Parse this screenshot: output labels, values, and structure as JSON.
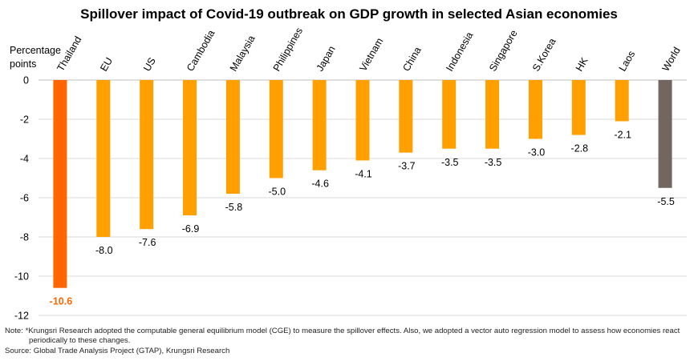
{
  "title": "Spillover impact of Covid-19 outbreak on GDP growth in selected Asian economies",
  "note_line1": "Note: *Krungsri Research adopted the computable general equilibrium model (CGE) to measure the spillover effects. Also, we adopted a vector auto regression model to assess how economies react",
  "note_line2": "periodically to these changes.",
  "source": "Source: Global Trade Analysis Project (GTAP), Krungsri Research",
  "chart_data": {
    "type": "bar",
    "title": "Spillover impact of Covid-19 outbreak on GDP growth in selected Asian economies",
    "ylabel_line1": "Percentage",
    "ylabel_line2": "points",
    "categories": [
      "Thailand",
      "EU",
      "US",
      "Cambodia",
      "Malaysia",
      "Philippines",
      "Japan",
      "Vietnam",
      "China",
      "Indonesia",
      "Singapore",
      "S.Korea",
      "HK",
      "Laos",
      "World"
    ],
    "values": [
      -10.6,
      -8.0,
      -7.6,
      -6.9,
      -5.8,
      -5.0,
      -4.6,
      -4.1,
      -3.7,
      -3.5,
      -3.5,
      -3.0,
      -2.8,
      -2.1,
      -5.5
    ],
    "labels": [
      "-10.6",
      "-8.0",
      "-7.6",
      "-6.9",
      "-5.8",
      "-5.0",
      "-4.6",
      "-4.1",
      "-3.7",
      "-3.5",
      "-3.5",
      "-3.0",
      "-2.8",
      "-2.1",
      "-5.5"
    ],
    "ylim": [
      -12,
      0
    ],
    "yticks": [
      0,
      -2,
      -4,
      -6,
      -8,
      -10,
      -12
    ],
    "grid": true,
    "colors": {
      "Thailand": "#ff6600",
      "default": "#ffa000",
      "World": "#736560",
      "highlight_label": "#ff6600"
    }
  }
}
